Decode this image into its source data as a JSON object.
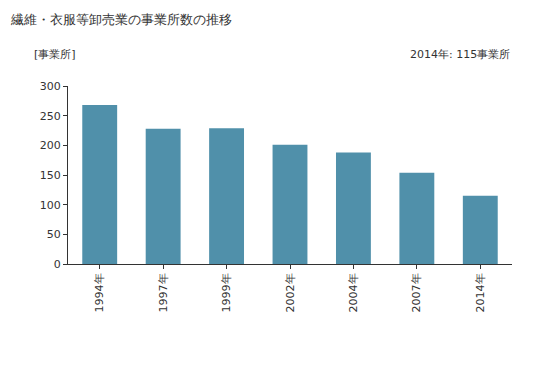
{
  "chart_data": {
    "type": "bar",
    "title": "繊維・衣服等卸売業の事業所数の推移",
    "ylabel": "[事業所]",
    "annotations": [
      "2014年: 115事業所"
    ],
    "categories": [
      "1994年",
      "1997年",
      "1999年",
      "2002年",
      "2004年",
      "2007年",
      "2014年"
    ],
    "values": [
      268,
      228,
      229,
      201,
      188,
      154,
      115
    ],
    "color": "#5090aa",
    "ylim": [
      0,
      300
    ],
    "yticks": [
      0,
      50,
      100,
      150,
      200,
      250,
      300
    ],
    "grid": false
  }
}
